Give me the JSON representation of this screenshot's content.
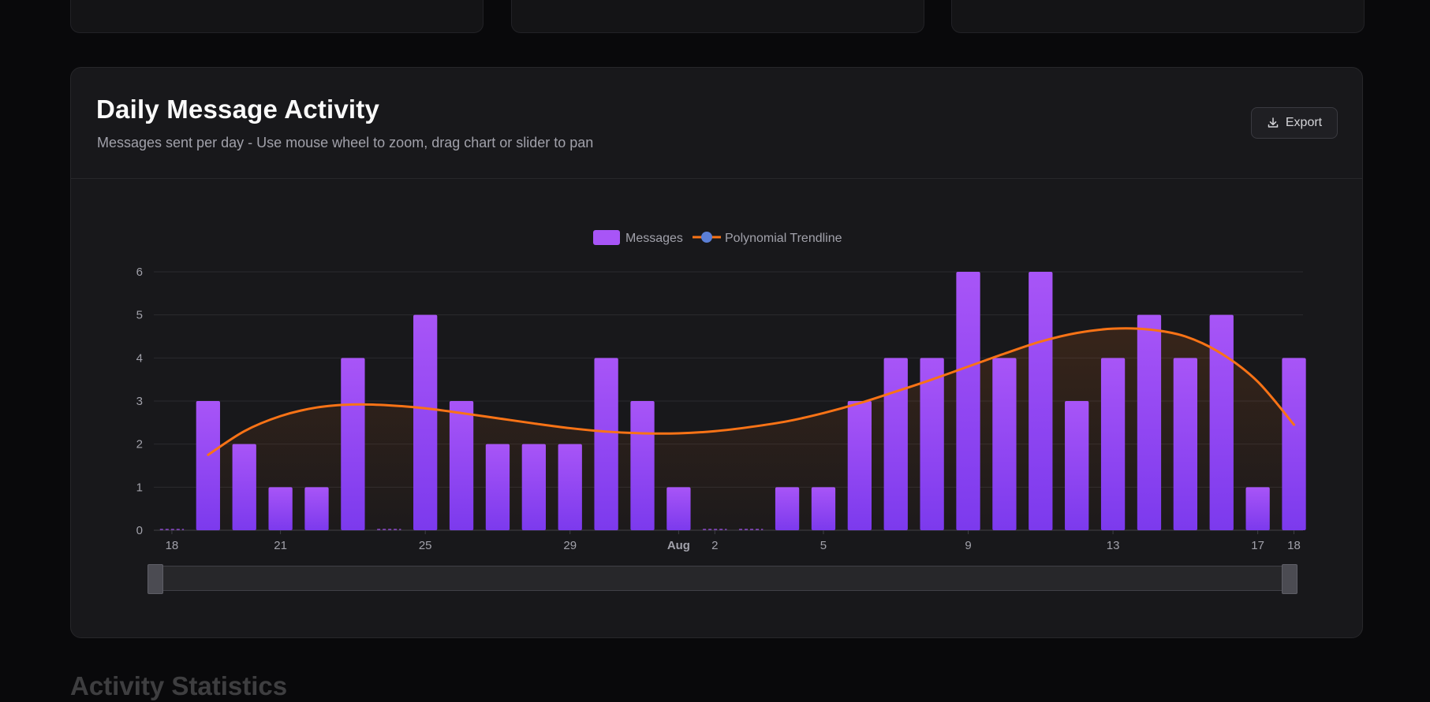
{
  "card": {
    "title": "Daily Message Activity",
    "subtitle": "Messages sent per day - Use mouse wheel to zoom, drag chart or slider to pan",
    "export_label": "Export",
    "export_icon": "download-icon"
  },
  "next_section": {
    "title": "Activity Statistics"
  },
  "colors": {
    "bar": "#a855f7",
    "bar_bottom": "#7c3aed",
    "trendline": "#f97316",
    "trend_marker": "#5b7fd6",
    "background": "#09090b",
    "card": "#18181b"
  },
  "chart_data": {
    "type": "bar",
    "title": "",
    "xlabel": "",
    "ylabel": "",
    "ylim": [
      0,
      6
    ],
    "y_ticks": [
      "0",
      "1",
      "2",
      "3",
      "4",
      "5",
      "6"
    ],
    "x_tick_labels": [
      {
        "date": "2025-07-18",
        "label": "18"
      },
      {
        "date": "2025-07-21",
        "label": "21"
      },
      {
        "date": "2025-07-25",
        "label": "25"
      },
      {
        "date": "2025-07-29",
        "label": "29"
      },
      {
        "date": "2025-08-01",
        "label": "Aug",
        "bold": true
      },
      {
        "date": "2025-08-02",
        "label": "2"
      },
      {
        "date": "2025-08-05",
        "label": "5"
      },
      {
        "date": "2025-08-09",
        "label": "9"
      },
      {
        "date": "2025-08-13",
        "label": "13"
      },
      {
        "date": "2025-08-17",
        "label": "17"
      },
      {
        "date": "2025-08-18",
        "label": "18"
      }
    ],
    "grid": true,
    "legend": {
      "position": "top-center",
      "items": [
        "Messages",
        "Polynomial Trendline"
      ]
    },
    "categories": [
      "2025-07-18",
      "2025-07-19",
      "2025-07-20",
      "2025-07-21",
      "2025-07-22",
      "2025-07-23",
      "2025-07-24",
      "2025-07-25",
      "2025-07-26",
      "2025-07-27",
      "2025-07-28",
      "2025-07-29",
      "2025-07-30",
      "2025-07-31",
      "2025-08-01",
      "2025-08-02",
      "2025-08-03",
      "2025-08-04",
      "2025-08-05",
      "2025-08-06",
      "2025-08-07",
      "2025-08-08",
      "2025-08-09",
      "2025-08-10",
      "2025-08-11",
      "2025-08-12",
      "2025-08-13",
      "2025-08-14",
      "2025-08-15",
      "2025-08-16",
      "2025-08-17",
      "2025-08-18"
    ],
    "series": [
      {
        "name": "Messages",
        "type": "bar",
        "values": [
          0,
          3,
          2,
          1,
          1,
          4,
          0,
          5,
          3,
          2,
          2,
          2,
          4,
          3,
          1,
          0,
          0,
          1,
          1,
          3,
          4,
          4,
          6,
          4,
          6,
          3,
          4,
          5,
          4,
          5,
          1,
          4
        ]
      },
      {
        "name": "Polynomial Trendline",
        "type": "line",
        "values": [
          null,
          1.75,
          2.3,
          2.65,
          2.85,
          2.92,
          2.9,
          2.83,
          2.72,
          2.6,
          2.48,
          2.37,
          2.29,
          2.25,
          2.25,
          2.3,
          2.4,
          2.53,
          2.72,
          2.95,
          3.22,
          3.5,
          3.8,
          4.1,
          4.38,
          4.58,
          4.68,
          4.66,
          4.5,
          4.1,
          3.45,
          2.45
        ]
      }
    ]
  }
}
